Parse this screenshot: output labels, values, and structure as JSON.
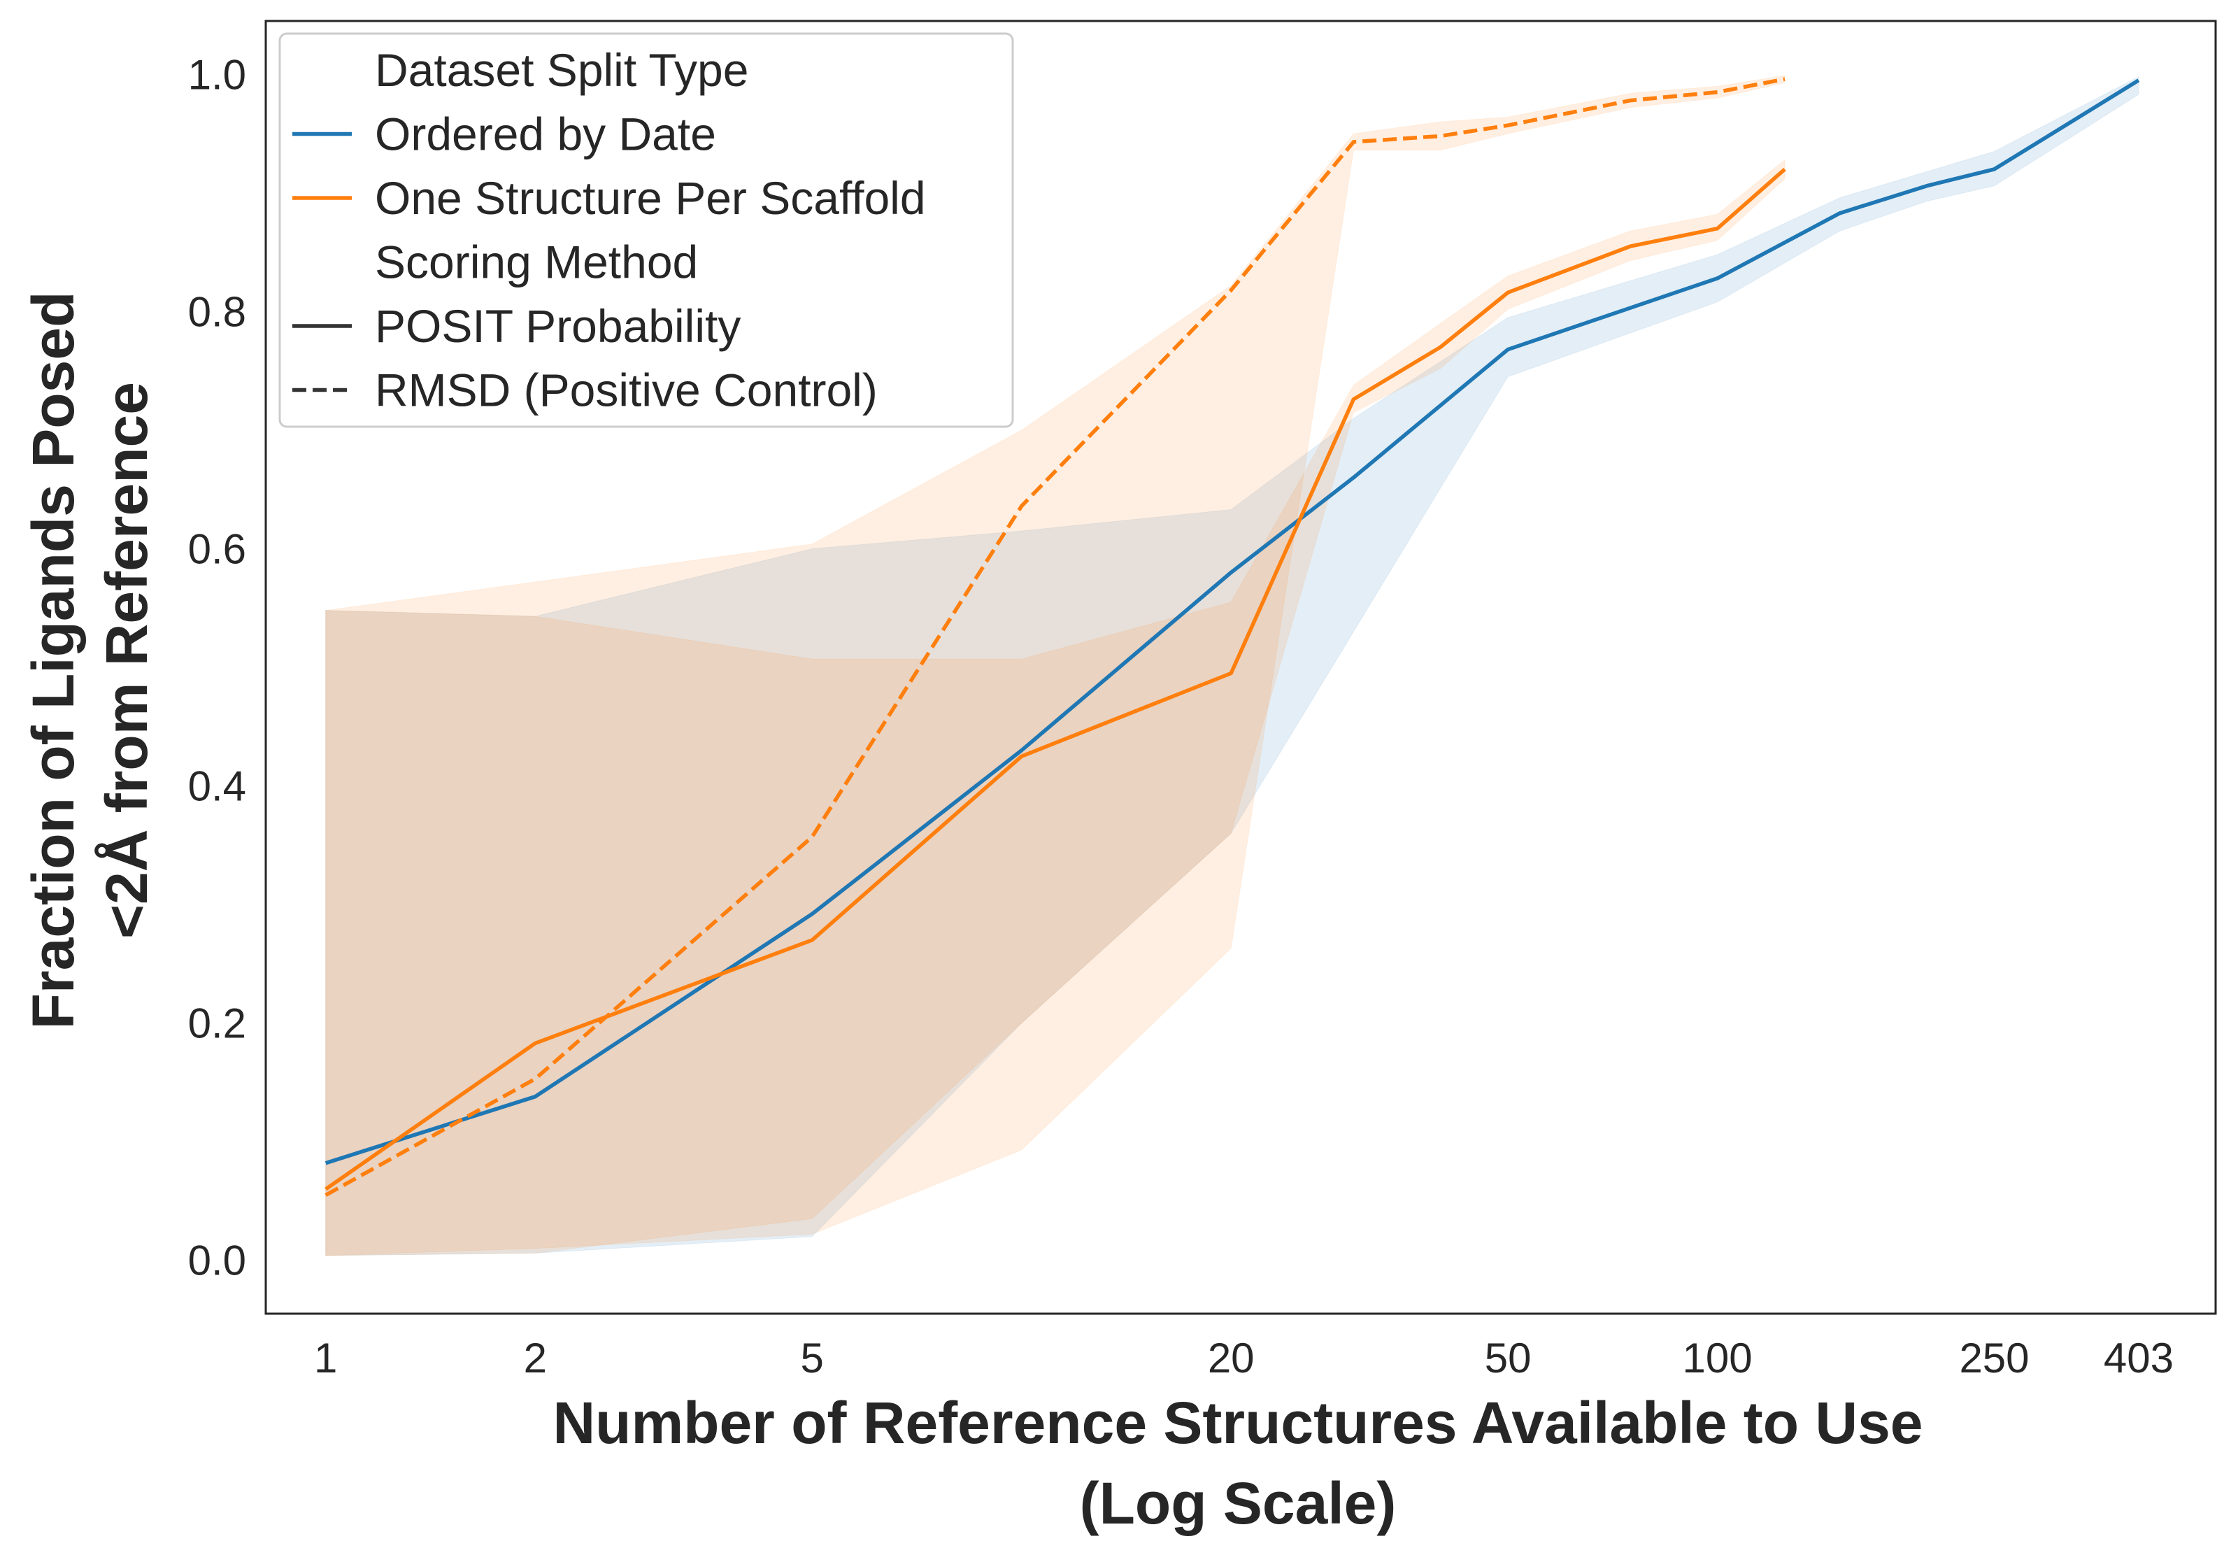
{
  "chart_data": {
    "type": "line",
    "title": "",
    "xlabel_lines": [
      "Number of Reference Structures Available to Use",
      "(Log Scale)"
    ],
    "ylabel_lines": [
      "Fraction of Ligands Posed",
      "<2Å from Reference"
    ],
    "x_scale": "log",
    "xlim": [
      0.82,
      520
    ],
    "ylim": [
      -0.045,
      1.045
    ],
    "x_ticks": [
      1,
      2,
      5,
      20,
      50,
      100,
      250,
      403
    ],
    "x_tick_labels": [
      "1",
      "2",
      "5",
      "20",
      "50",
      "100",
      "250",
      "403"
    ],
    "y_ticks": [
      0.0,
      0.2,
      0.4,
      0.6,
      0.8,
      1.0
    ],
    "y_tick_labels": [
      "0.0",
      "0.2",
      "0.4",
      "0.6",
      "0.8",
      "1.0"
    ],
    "grid": false,
    "colors": {
      "blue": "#1f77b4",
      "orange": "#ff7f0e",
      "legend_line": "#333333",
      "frame": "#262626"
    },
    "legend": {
      "position": "top-left",
      "entries": [
        {
          "label": "Dataset Split Type",
          "marker": "none"
        },
        {
          "label": "Ordered by Date",
          "marker": "line",
          "color": "#1f77b4",
          "dash": "solid"
        },
        {
          "label": "One Structure Per Scaffold",
          "marker": "line",
          "color": "#ff7f0e",
          "dash": "solid"
        },
        {
          "label": "Scoring Method",
          "marker": "none"
        },
        {
          "label": "POSIT Probability",
          "marker": "line",
          "color": "#333333",
          "dash": "solid"
        },
        {
          "label": "RMSD (Positive Control)",
          "marker": "line",
          "color": "#333333",
          "dash": "dashed"
        }
      ]
    },
    "series": [
      {
        "split": "Ordered by Date",
        "scoring": "POSIT Probability",
        "color": "#1f77b4",
        "dash": "solid",
        "band_opacity": 0.12,
        "x": [
          1,
          2,
          5,
          10,
          20,
          30,
          50,
          100,
          150,
          200,
          250,
          403
        ],
        "y": [
          0.082,
          0.138,
          0.292,
          0.43,
          0.58,
          0.66,
          0.768,
          0.828,
          0.883,
          0.906,
          0.92,
          0.995
        ],
        "lower": [
          0.004,
          0.006,
          0.02,
          0.2,
          0.36,
          0.53,
          0.745,
          0.808,
          0.868,
          0.893,
          0.906,
          0.983
        ],
        "upper": [
          0.548,
          0.543,
          0.6,
          0.615,
          0.633,
          0.71,
          0.795,
          0.848,
          0.896,
          0.918,
          0.935,
          0.998
        ]
      },
      {
        "split": "One Structure Per Scaffold",
        "scoring": "POSIT Probability",
        "color": "#ff7f0e",
        "dash": "solid",
        "band_opacity": 0.12,
        "x": [
          1,
          2,
          5,
          10,
          20,
          30,
          40,
          50,
          75,
          100,
          125
        ],
        "y": [
          0.06,
          0.183,
          0.27,
          0.425,
          0.495,
          0.726,
          0.77,
          0.816,
          0.855,
          0.87,
          0.92
        ],
        "lower": [
          0.004,
          0.006,
          0.035,
          0.2,
          0.36,
          0.715,
          0.752,
          0.802,
          0.843,
          0.86,
          0.912
        ],
        "upper": [
          0.548,
          0.543,
          0.507,
          0.507,
          0.555,
          0.738,
          0.79,
          0.83,
          0.868,
          0.882,
          0.928
        ]
      },
      {
        "split": "One Structure Per Scaffold",
        "scoring": "RMSD (Positive Control)",
        "color": "#ff7f0e",
        "dash": "dashed",
        "band_opacity": 0.12,
        "x": [
          1,
          2,
          5,
          10,
          20,
          30,
          40,
          50,
          75,
          100,
          125
        ],
        "y": [
          0.055,
          0.153,
          0.357,
          0.636,
          0.818,
          0.943,
          0.948,
          0.957,
          0.978,
          0.985,
          0.996
        ],
        "lower": [
          0.004,
          0.01,
          0.022,
          0.093,
          0.263,
          0.936,
          0.936,
          0.95,
          0.972,
          0.98,
          0.993
        ],
        "upper": [
          0.548,
          0.572,
          0.604,
          0.7,
          0.822,
          0.95,
          0.96,
          0.964,
          0.984,
          0.99,
          0.999
        ]
      }
    ]
  }
}
